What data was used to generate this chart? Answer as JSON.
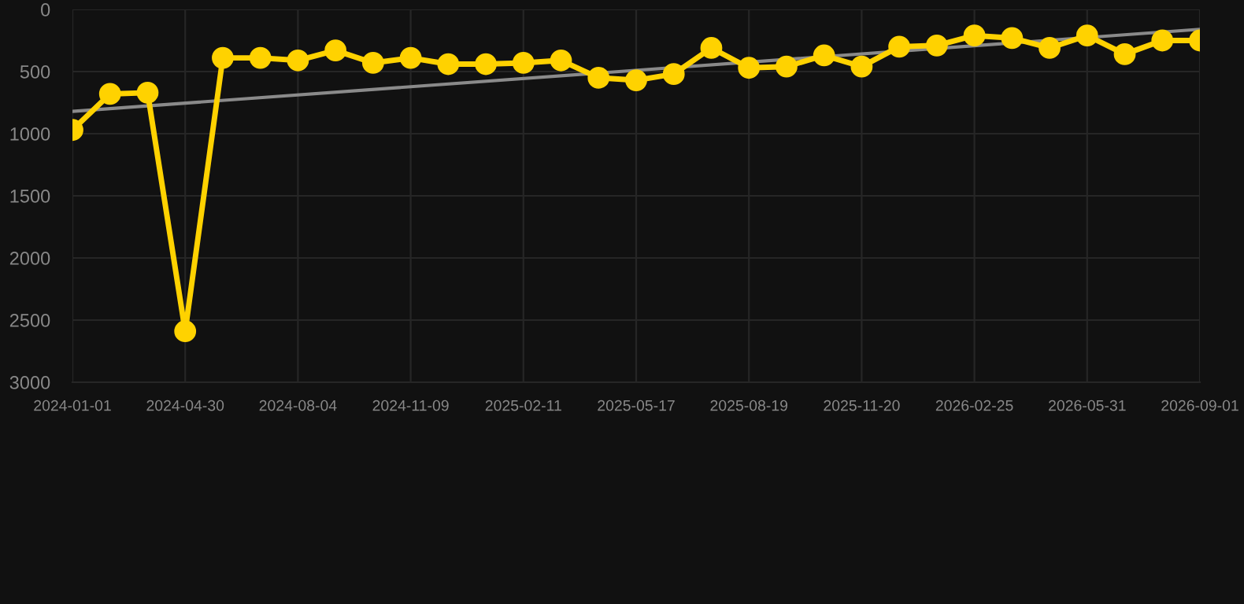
{
  "chart_data": {
    "type": "line",
    "categories": [
      "2024-01-01",
      null,
      null,
      "2024-04-30",
      null,
      null,
      "2024-08-04",
      null,
      null,
      "2024-11-09",
      null,
      null,
      "2025-02-11",
      null,
      null,
      "2025-05-17",
      null,
      null,
      "2025-08-19",
      null,
      null,
      "2025-11-20",
      null,
      null,
      "2026-02-25",
      null,
      null,
      "2026-05-31",
      null,
      null,
      "2026-09-01"
    ],
    "series": [
      {
        "color": "#ffd200",
        "marker": "circle",
        "values": [
          970,
          680,
          670,
          2590,
          390,
          390,
          410,
          330,
          430,
          390,
          440,
          440,
          430,
          410,
          550,
          570,
          520,
          310,
          470,
          460,
          370,
          460,
          300,
          290,
          210,
          230,
          310,
          210,
          360,
          250,
          250
        ]
      },
      {
        "type": "line",
        "color": "#8a8a8a",
        "marker": "none",
        "values": [
          820,
          null,
          null,
          null,
          null,
          null,
          null,
          null,
          null,
          null,
          null,
          null,
          null,
          null,
          null,
          null,
          null,
          null,
          null,
          null,
          null,
          null,
          null,
          null,
          null,
          null,
          null,
          null,
          null,
          null,
          160
        ]
      }
    ],
    "ylim": [
      3000,
      0
    ],
    "yticks": [
      0,
      500,
      1000,
      1500,
      2000,
      2500,
      3000
    ],
    "grid": true
  }
}
